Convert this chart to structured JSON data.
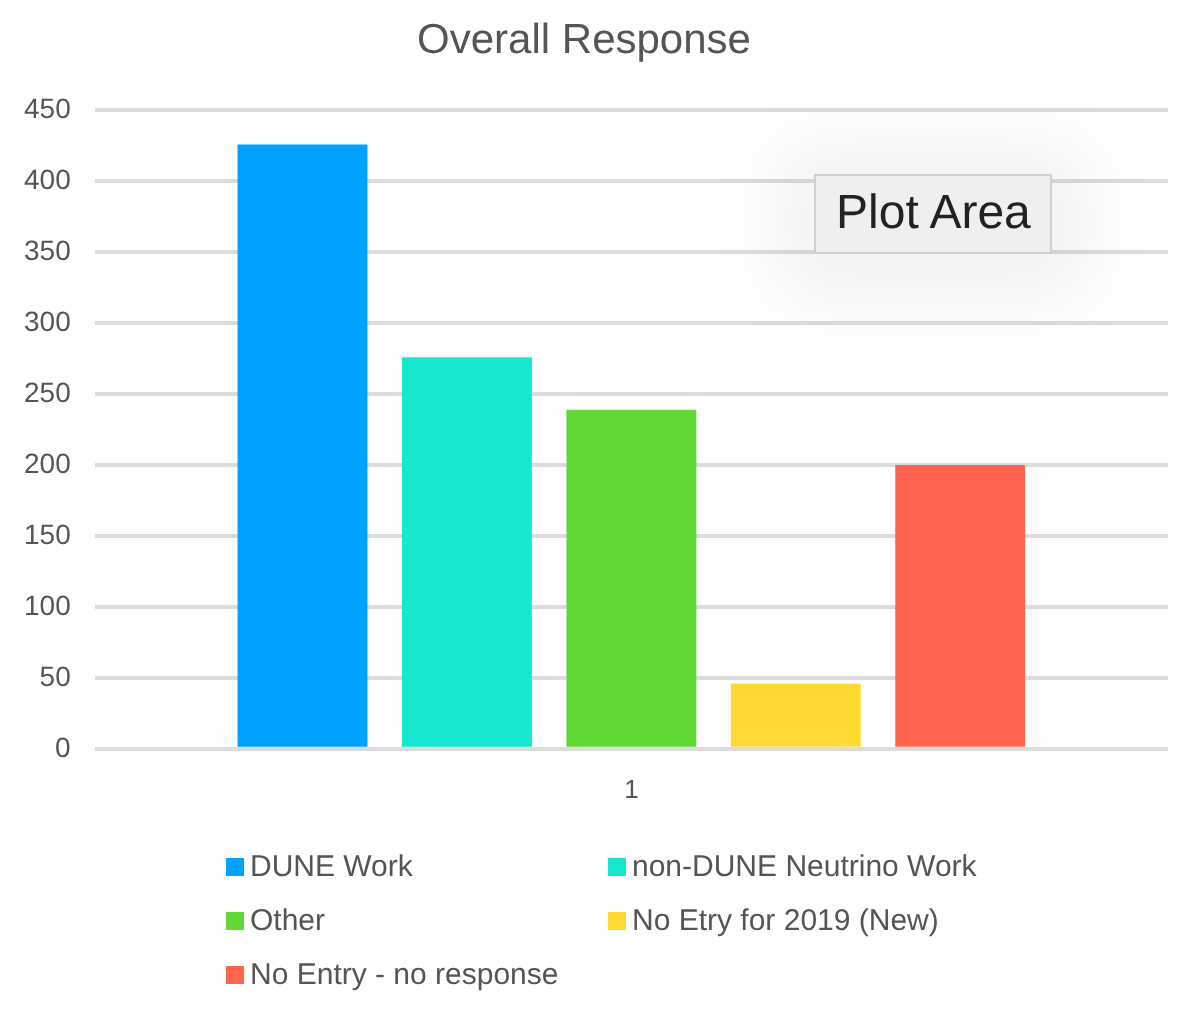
{
  "chart_data": {
    "type": "bar",
    "title": "Overall Response",
    "categories": [
      "1"
    ],
    "series": [
      {
        "name": "DUNE Work",
        "color": "#00a2ff",
        "values": [
          426
        ]
      },
      {
        "name": "non-DUNE Neutrino Work",
        "color": "#16e7cf",
        "values": [
          276
        ]
      },
      {
        "name": "Other",
        "color": "#61d836",
        "values": [
          239
        ]
      },
      {
        "name": "No Etry for 2019 (New)",
        "color": "#ffd932",
        "values": [
          46
        ]
      },
      {
        "name": "No Entry - no response",
        "color": "#ff644e",
        "values": [
          200
        ]
      }
    ],
    "ylim": [
      0,
      450
    ],
    "yticks": [
      0,
      50,
      100,
      150,
      200,
      250,
      300,
      350,
      400,
      450
    ],
    "grid": "y",
    "legend": "bottom",
    "annotations": [
      "Plot Area"
    ]
  }
}
